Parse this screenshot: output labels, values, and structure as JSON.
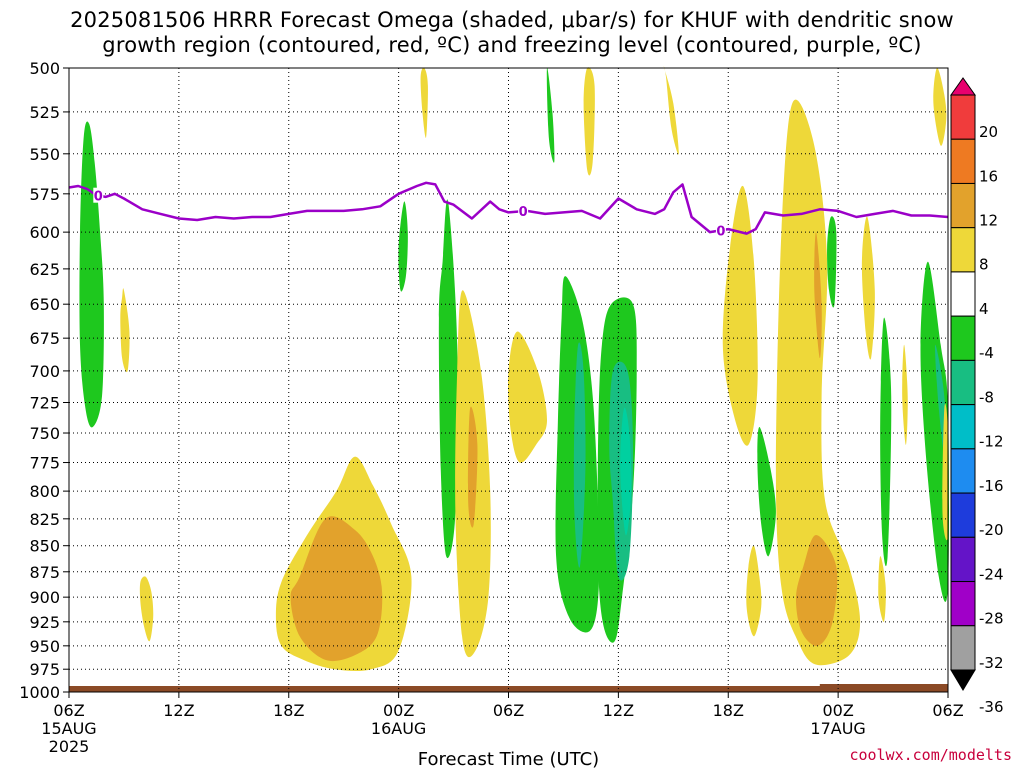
{
  "title": {
    "line1": "2025081506 HRRR Forecast Omega (shaded, μbar/s) for KHUF with dendritic snow",
    "line2": "growth region (contoured, red, ºC) and freezing level (contoured, purple, ºC)"
  },
  "credit": "coolwx.com/modelts",
  "chart_data": {
    "type": "heatmap",
    "xlabel": "Forecast Time (UTC)",
    "ylabel": "",
    "x_ticks": [
      {
        "hour": 0,
        "label": "06Z",
        "sub": "15AUG",
        "sub2": "2025"
      },
      {
        "hour": 6,
        "label": "12Z",
        "sub": "",
        "sub2": ""
      },
      {
        "hour": 12,
        "label": "18Z",
        "sub": "",
        "sub2": ""
      },
      {
        "hour": 18,
        "label": "00Z",
        "sub": "16AUG",
        "sub2": ""
      },
      {
        "hour": 24,
        "label": "06Z",
        "sub": "",
        "sub2": ""
      },
      {
        "hour": 30,
        "label": "12Z",
        "sub": "",
        "sub2": ""
      },
      {
        "hour": 36,
        "label": "18Z",
        "sub": "",
        "sub2": ""
      },
      {
        "hour": 42,
        "label": "00Z",
        "sub": "17AUG",
        "sub2": ""
      },
      {
        "hour": 48,
        "label": "06Z",
        "sub": "",
        "sub2": ""
      }
    ],
    "xlim_hours": [
      0,
      48
    ],
    "y_ticks": [
      500,
      525,
      550,
      575,
      600,
      625,
      650,
      675,
      700,
      725,
      750,
      775,
      800,
      825,
      850,
      875,
      900,
      925,
      950,
      975,
      1000
    ],
    "ylim_mb": [
      500,
      1000
    ],
    "y_scale": "log",
    "grid": true,
    "colorbar": {
      "levels": [
        20,
        16,
        12,
        8,
        4,
        -4,
        -8,
        -12,
        -16,
        -20,
        -24,
        -28,
        -32,
        -36
      ],
      "colors": [
        "#e8006e",
        "#f03c3c",
        "#ee7a22",
        "#e2a22c",
        "#eed839",
        "#ffffff",
        "#1ec81e",
        "#18be82",
        "#00bec8",
        "#1e8cf0",
        "#1e3cdc",
        "#6414c8",
        "#a000c8",
        "#a0a0a0",
        "#000000"
      ]
    },
    "freezing_level": {
      "label": "0",
      "color": "#9b00c8",
      "hours": [
        0,
        0.5,
        1,
        1.5,
        2,
        2.5,
        3,
        4,
        5,
        6,
        7,
        8,
        9,
        10,
        11,
        12,
        13,
        14,
        15,
        16,
        17,
        18,
        19,
        19.5,
        20,
        20.5,
        21,
        22,
        23,
        23.5,
        24,
        25,
        26,
        27,
        28,
        29,
        30,
        31,
        32,
        32.5,
        33,
        33.5,
        34,
        35,
        36,
        37,
        37.5,
        38,
        39,
        40,
        41,
        42,
        43,
        44,
        45,
        46,
        47,
        48
      ],
      "mb": [
        571,
        570,
        572,
        576,
        577,
        575,
        578,
        585,
        588,
        591,
        592,
        590,
        591,
        590,
        590,
        588,
        586,
        586,
        586,
        585,
        583,
        575,
        570,
        568,
        569,
        580,
        582,
        591,
        580,
        585,
        587,
        586,
        588,
        587,
        586,
        591,
        578,
        585,
        588,
        585,
        574,
        569,
        590,
        600,
        598,
        601,
        598,
        587,
        589,
        588,
        585,
        586,
        590,
        588,
        586,
        589,
        589,
        590
      ]
    },
    "omega_regions": [
      {
        "id": "g1",
        "level": -4,
        "hours": [
          1.1,
          1.4,
          1.7,
          1.9,
          1.8,
          1.3,
          0.9,
          0.6,
          0.6,
          0.8
        ],
        "mb": [
          532,
          555,
          600,
          650,
          720,
          745,
          730,
          680,
          600,
          540
        ]
      },
      {
        "id": "y1",
        "level": 4,
        "hours": [
          3.0,
          3.3,
          3.2,
          2.9,
          2.8,
          2.9
        ],
        "mb": [
          640,
          670,
          700,
          690,
          660,
          645
        ]
      },
      {
        "id": "y2",
        "level": 4,
        "hours": [
          4.2,
          4.5,
          4.6,
          4.4,
          4.1,
          3.9,
          3.9
        ],
        "mb": [
          880,
          895,
          920,
          945,
          930,
          905,
          885
        ]
      },
      {
        "id": "y3",
        "level": 4,
        "hours": [
          15.6,
          16.6,
          17.6,
          18.7,
          18.0,
          16.5,
          14.5,
          12.8,
          11.6,
          11.3,
          11.6,
          13.0,
          14.6
        ],
        "mb": [
          770,
          795,
          830,
          880,
          955,
          975,
          975,
          965,
          950,
          920,
          885,
          840,
          800
        ]
      },
      {
        "id": "o3",
        "level": 8,
        "hours": [
          14.0,
          15.6,
          16.6,
          17.1,
          16.8,
          15.6,
          14.0,
          12.6,
          12.1,
          12.6
        ],
        "mb": [
          825,
          835,
          860,
          895,
          940,
          960,
          965,
          940,
          900,
          880
        ]
      },
      {
        "id": "g2",
        "level": -4,
        "hours": [
          18.3,
          18.5,
          18.4,
          18.1,
          18.0
        ],
        "mb": [
          580,
          600,
          630,
          640,
          610
        ]
      },
      {
        "id": "y4",
        "level": 4,
        "hours": [
          19.4,
          19.6,
          19.5,
          19.3,
          19.2
        ],
        "mb": [
          500,
          510,
          540,
          525,
          505
        ]
      },
      {
        "id": "g3",
        "level": -4,
        "hours": [
          20.7,
          21.2,
          21.1,
          20.6,
          20.3,
          20.2,
          20.4
        ],
        "mb": [
          580,
          680,
          820,
          860,
          780,
          660,
          620
        ]
      },
      {
        "id": "y5",
        "level": 4,
        "hours": [
          21.5,
          22.5,
          23.0,
          22.9,
          22.2,
          21.5,
          21.1,
          21.2
        ],
        "mb": [
          640,
          700,
          800,
          900,
          955,
          945,
          820,
          700
        ]
      },
      {
        "id": "o5",
        "level": 8,
        "hours": [
          21.9,
          22.3,
          22.1,
          21.8
        ],
        "mb": [
          730,
          760,
          830,
          810
        ]
      },
      {
        "id": "y6",
        "level": 4,
        "hours": [
          24.5,
          25.6,
          26.1,
          25.5,
          24.6,
          24.1,
          24.0
        ],
        "mb": [
          670,
          700,
          740,
          760,
          775,
          745,
          700
        ]
      },
      {
        "id": "g4",
        "level": -4,
        "hours": [
          26.1,
          26.4,
          26.5,
          26.2
        ],
        "mb": [
          500,
          525,
          555,
          540
        ]
      },
      {
        "id": "g5",
        "level": -4,
        "hours": [
          27.1,
          28.0,
          28.6,
          28.9,
          28.9,
          28.4,
          27.3,
          26.6,
          26.7,
          26.9
        ],
        "mb": [
          630,
          660,
          720,
          820,
          900,
          935,
          920,
          860,
          740,
          660
        ]
      },
      {
        "id": "c5",
        "level": -8,
        "hours": [
          27.8,
          28.1,
          28.2,
          27.9,
          27.6,
          27.6
        ],
        "mb": [
          680,
          700,
          780,
          870,
          820,
          740
        ]
      },
      {
        "id": "g6",
        "level": -4,
        "hours": [
          29.6,
          30.8,
          31.0,
          30.8,
          30.2,
          29.8,
          29.2,
          28.9,
          28.9,
          29.1
        ],
        "mb": [
          650,
          650,
          700,
          800,
          900,
          945,
          930,
          870,
          750,
          680
        ]
      },
      {
        "id": "c6",
        "level": -8,
        "hours": [
          29.7,
          30.5,
          30.8,
          30.6,
          30.0,
          29.7,
          29.5
        ],
        "mb": [
          700,
          700,
          760,
          860,
          880,
          810,
          760
        ]
      },
      {
        "id": "t6",
        "level": -12,
        "hours": [
          30.3,
          30.6,
          30.7,
          30.4,
          30.1
        ],
        "mb": [
          730,
          750,
          800,
          840,
          780
        ]
      },
      {
        "id": "y7",
        "level": 4,
        "hours": [
          28.3,
          28.7,
          28.6,
          28.3,
          28.1
        ],
        "mb": [
          500,
          510,
          555,
          560,
          520
        ]
      },
      {
        "id": "y8",
        "level": 4,
        "hours": [
          32.5,
          33.0,
          33.3,
          32.9,
          32.6
        ],
        "mb": [
          500,
          520,
          550,
          535,
          505
        ]
      },
      {
        "id": "y9",
        "level": 4,
        "hours": [
          36.8,
          37.4,
          37.6,
          37.1,
          36.3,
          35.7,
          36.1
        ],
        "mb": [
          570,
          620,
          710,
          760,
          735,
          680,
          610
        ]
      },
      {
        "id": "y10",
        "level": 4,
        "hours": [
          39.5,
          40.7,
          41.4,
          41.1,
          41.3,
          42.6,
          43.2,
          42.6,
          40.8,
          39.8,
          38.9,
          38.6,
          38.9
        ],
        "mb": [
          520,
          545,
          620,
          720,
          810,
          870,
          925,
          960,
          970,
          945,
          890,
          780,
          600
        ]
      },
      {
        "id": "o10",
        "level": 8,
        "hours": [
          40.8,
          41.9,
          41.7,
          40.9,
          40.0,
          39.7,
          40.1
        ],
        "mb": [
          840,
          870,
          925,
          950,
          935,
          900,
          870
        ]
      },
      {
        "id": "o10b",
        "level": 8,
        "hours": [
          40.8,
          41.1,
          41.0,
          40.7
        ],
        "mb": [
          600,
          650,
          690,
          640
        ]
      },
      {
        "id": "g10",
        "level": -4,
        "hours": [
          41.6,
          41.9,
          41.8,
          41.5,
          41.4
        ],
        "mb": [
          590,
          600,
          650,
          640,
          610
        ]
      },
      {
        "id": "g11",
        "level": -4,
        "hours": [
          37.7,
          38.3,
          38.6,
          38.2,
          37.8,
          37.6
        ],
        "mb": [
          745,
          780,
          820,
          860,
          830,
          780
        ]
      },
      {
        "id": "y11",
        "level": 4,
        "hours": [
          37.4,
          37.7,
          37.8,
          37.4,
          37.0,
          37.1
        ],
        "mb": [
          850,
          880,
          910,
          940,
          910,
          870
        ]
      },
      {
        "id": "y12",
        "level": 4,
        "hours": [
          43.6,
          44.0,
          43.8,
          43.5,
          43.3
        ],
        "mb": [
          590,
          640,
          690,
          670,
          620
        ]
      },
      {
        "id": "g13",
        "level": -4,
        "hours": [
          44.5,
          44.9,
          44.7,
          44.4,
          44.3
        ],
        "mb": [
          660,
          720,
          860,
          840,
          740
        ]
      },
      {
        "id": "y13",
        "level": 4,
        "hours": [
          44.3,
          44.6,
          44.5,
          44.2
        ],
        "mb": [
          860,
          890,
          925,
          900
        ]
      },
      {
        "id": "y14",
        "level": 4,
        "hours": [
          45.6,
          45.8,
          45.7,
          45.5
        ],
        "mb": [
          680,
          720,
          760,
          720
        ]
      },
      {
        "id": "g14",
        "level": -4,
        "hours": [
          46.9,
          47.6,
          48.0,
          48.0,
          47.5,
          46.8,
          46.5
        ],
        "mb": [
          620,
          680,
          730,
          890,
          880,
          770,
          680
        ]
      },
      {
        "id": "c14",
        "level": -8,
        "hours": [
          47.3,
          47.8,
          47.9,
          47.5
        ],
        "mb": [
          680,
          720,
          780,
          730
        ]
      },
      {
        "id": "y15",
        "level": 4,
        "hours": [
          47.4,
          47.8,
          47.9,
          47.6,
          47.2
        ],
        "mb": [
          500,
          515,
          530,
          545,
          520
        ]
      },
      {
        "id": "y16",
        "level": 4,
        "hours": [
          47.8,
          48.0,
          48.0,
          47.7
        ],
        "mb": [
          730,
          750,
          840,
          820
        ]
      }
    ],
    "terrain_color": "#8b4a26"
  }
}
